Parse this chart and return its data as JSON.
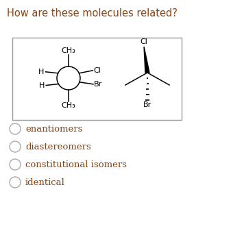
{
  "title": "How are these molecules related?",
  "title_color": "#8B4513",
  "title_fontsize": 10.5,
  "bg_color": "#ffffff",
  "box_edgecolor": "#999999",
  "options": [
    "enantiomers",
    "diastereomers",
    "constitutional isomers",
    "identical"
  ],
  "option_color": "#8B4513",
  "option_fontsize": 9.5,
  "mol1": {
    "CH3_top": "CH₃",
    "Cl": "Cl",
    "H_top": "H",
    "H_bot": "H",
    "Br": "Br",
    "CH3_bot": "CH₃"
  },
  "mol2": {
    "Cl": "Cl",
    "Br": "Br"
  }
}
